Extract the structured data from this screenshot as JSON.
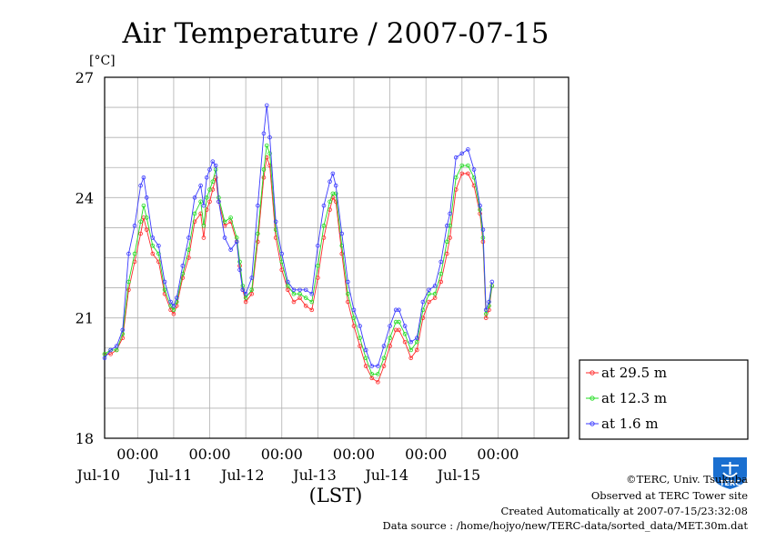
{
  "chart_data": {
    "type": "line",
    "title": "Air Temperature / 2007-07-15",
    "ylabel": "[°C]",
    "xlabel": "(LST)",
    "ylim": [
      18,
      27
    ],
    "yticks": [
      18,
      21,
      24,
      27
    ],
    "x_start": "2007-07-09 13:00",
    "x_end": "2007-07-15 23:30",
    "xticks": [
      {
        "time": "2007-07-10 00:00",
        "label": "00:00",
        "date": "Jul-10"
      },
      {
        "time": "2007-07-11 00:00",
        "label": "00:00",
        "date": "Jul-11"
      },
      {
        "time": "2007-07-12 00:00",
        "label": "00:00",
        "date": "Jul-12"
      },
      {
        "time": "2007-07-13 00:00",
        "label": "00:00",
        "date": "Jul-13"
      },
      {
        "time": "2007-07-14 00:00",
        "label": "00:00",
        "date": "Jul-14"
      },
      {
        "time": "2007-07-15 00:00",
        "label": "00:00",
        "date": "Jul-15"
      }
    ],
    "grid": true,
    "legend_position": "bottom-right, outside plot",
    "series": [
      {
        "name": "at 29.5 m",
        "color": "#ff2a2a",
        "points": [
          [
            "2007-07-09 13:00",
            20.1
          ],
          [
            "2007-07-09 15:00",
            20.1
          ],
          [
            "2007-07-09 17:00",
            20.2
          ],
          [
            "2007-07-09 19:00",
            20.5
          ],
          [
            "2007-07-09 21:00",
            21.7
          ],
          [
            "2007-07-09 23:00",
            22.4
          ],
          [
            "2007-07-10 01:00",
            23.1
          ],
          [
            "2007-07-10 02:00",
            23.5
          ],
          [
            "2007-07-10 03:00",
            23.2
          ],
          [
            "2007-07-10 05:00",
            22.6
          ],
          [
            "2007-07-10 07:00",
            22.4
          ],
          [
            "2007-07-10 09:00",
            21.6
          ],
          [
            "2007-07-10 11:00",
            21.2
          ],
          [
            "2007-07-10 12:00",
            21.1
          ],
          [
            "2007-07-10 13:00",
            21.3
          ],
          [
            "2007-07-10 15:00",
            22.0
          ],
          [
            "2007-07-10 17:00",
            22.5
          ],
          [
            "2007-07-10 19:00",
            23.4
          ],
          [
            "2007-07-10 21:00",
            23.6
          ],
          [
            "2007-07-10 22:00",
            23.0
          ],
          [
            "2007-07-10 23:00",
            23.7
          ],
          [
            "2007-07-11 00:00",
            23.9
          ],
          [
            "2007-07-11 01:00",
            24.2
          ],
          [
            "2007-07-11 02:00",
            24.5
          ],
          [
            "2007-07-11 03:00",
            23.9
          ],
          [
            "2007-07-11 05:00",
            23.3
          ],
          [
            "2007-07-11 07:00",
            23.4
          ],
          [
            "2007-07-11 09:00",
            22.9
          ],
          [
            "2007-07-11 10:00",
            22.3
          ],
          [
            "2007-07-11 11:00",
            21.7
          ],
          [
            "2007-07-11 12:00",
            21.4
          ],
          [
            "2007-07-11 14:00",
            21.6
          ],
          [
            "2007-07-11 16:00",
            22.9
          ],
          [
            "2007-07-11 18:00",
            24.5
          ],
          [
            "2007-07-11 19:00",
            25.0
          ],
          [
            "2007-07-11 20:00",
            24.8
          ],
          [
            "2007-07-11 22:00",
            23.0
          ],
          [
            "2007-07-12 00:00",
            22.2
          ],
          [
            "2007-07-12 02:00",
            21.7
          ],
          [
            "2007-07-12 04:00",
            21.4
          ],
          [
            "2007-07-12 06:00",
            21.5
          ],
          [
            "2007-07-12 08:00",
            21.3
          ],
          [
            "2007-07-12 10:00",
            21.2
          ],
          [
            "2007-07-12 12:00",
            22.0
          ],
          [
            "2007-07-12 14:00",
            23.0
          ],
          [
            "2007-07-12 16:00",
            23.7
          ],
          [
            "2007-07-12 17:00",
            24.0
          ],
          [
            "2007-07-12 18:00",
            23.9
          ],
          [
            "2007-07-12 20:00",
            22.6
          ],
          [
            "2007-07-12 22:00",
            21.4
          ],
          [
            "2007-07-13 00:00",
            20.8
          ],
          [
            "2007-07-13 02:00",
            20.3
          ],
          [
            "2007-07-13 04:00",
            19.8
          ],
          [
            "2007-07-13 06:00",
            19.5
          ],
          [
            "2007-07-13 08:00",
            19.4
          ],
          [
            "2007-07-13 10:00",
            19.8
          ],
          [
            "2007-07-13 12:00",
            20.3
          ],
          [
            "2007-07-13 14:00",
            20.7
          ],
          [
            "2007-07-13 15:00",
            20.7
          ],
          [
            "2007-07-13 17:00",
            20.4
          ],
          [
            "2007-07-13 19:00",
            20.0
          ],
          [
            "2007-07-13 21:00",
            20.2
          ],
          [
            "2007-07-13 23:00",
            21.0
          ],
          [
            "2007-07-14 01:00",
            21.4
          ],
          [
            "2007-07-14 03:00",
            21.5
          ],
          [
            "2007-07-14 05:00",
            21.9
          ],
          [
            "2007-07-14 07:00",
            22.6
          ],
          [
            "2007-07-14 08:00",
            23.0
          ],
          [
            "2007-07-14 10:00",
            24.2
          ],
          [
            "2007-07-14 12:00",
            24.6
          ],
          [
            "2007-07-14 14:00",
            24.6
          ],
          [
            "2007-07-14 16:00",
            24.3
          ],
          [
            "2007-07-14 18:00",
            23.6
          ],
          [
            "2007-07-14 19:00",
            22.9
          ],
          [
            "2007-07-14 20:00",
            21.0
          ],
          [
            "2007-07-14 21:00",
            21.2
          ],
          [
            "2007-07-14 22:00",
            21.8
          ]
        ]
      },
      {
        "name": "at 12.3 m",
        "color": "#22dd22",
        "points": [
          [
            "2007-07-09 13:00",
            20.1
          ],
          [
            "2007-07-09 15:00",
            20.2
          ],
          [
            "2007-07-09 17:00",
            20.2
          ],
          [
            "2007-07-09 19:00",
            20.6
          ],
          [
            "2007-07-09 21:00",
            21.9
          ],
          [
            "2007-07-09 23:00",
            22.6
          ],
          [
            "2007-07-10 01:00",
            23.4
          ],
          [
            "2007-07-10 02:00",
            23.8
          ],
          [
            "2007-07-10 03:00",
            23.5
          ],
          [
            "2007-07-10 05:00",
            22.8
          ],
          [
            "2007-07-10 07:00",
            22.6
          ],
          [
            "2007-07-10 09:00",
            21.7
          ],
          [
            "2007-07-10 11:00",
            21.3
          ],
          [
            "2007-07-10 12:00",
            21.2
          ],
          [
            "2007-07-10 13:00",
            21.4
          ],
          [
            "2007-07-10 15:00",
            22.1
          ],
          [
            "2007-07-10 17:00",
            22.7
          ],
          [
            "2007-07-10 19:00",
            23.6
          ],
          [
            "2007-07-10 21:00",
            23.9
          ],
          [
            "2007-07-10 22:00",
            23.3
          ],
          [
            "2007-07-10 23:00",
            24.0
          ],
          [
            "2007-07-11 00:00",
            24.2
          ],
          [
            "2007-07-11 01:00",
            24.4
          ],
          [
            "2007-07-11 02:00",
            24.7
          ],
          [
            "2007-07-11 03:00",
            24.0
          ],
          [
            "2007-07-11 05:00",
            23.4
          ],
          [
            "2007-07-11 07:00",
            23.5
          ],
          [
            "2007-07-11 09:00",
            23.0
          ],
          [
            "2007-07-11 10:00",
            22.4
          ],
          [
            "2007-07-11 11:00",
            21.8
          ],
          [
            "2007-07-11 12:00",
            21.5
          ],
          [
            "2007-07-11 14:00",
            21.7
          ],
          [
            "2007-07-11 16:00",
            23.1
          ],
          [
            "2007-07-11 18:00",
            24.7
          ],
          [
            "2007-07-11 19:00",
            25.3
          ],
          [
            "2007-07-11 20:00",
            25.1
          ],
          [
            "2007-07-11 22:00",
            23.2
          ],
          [
            "2007-07-12 00:00",
            22.4
          ],
          [
            "2007-07-12 02:00",
            21.8
          ],
          [
            "2007-07-12 04:00",
            21.6
          ],
          [
            "2007-07-12 06:00",
            21.6
          ],
          [
            "2007-07-12 08:00",
            21.5
          ],
          [
            "2007-07-12 10:00",
            21.4
          ],
          [
            "2007-07-12 12:00",
            22.3
          ],
          [
            "2007-07-12 14:00",
            23.3
          ],
          [
            "2007-07-12 16:00",
            23.9
          ],
          [
            "2007-07-12 17:00",
            24.1
          ],
          [
            "2007-07-12 18:00",
            24.1
          ],
          [
            "2007-07-12 20:00",
            22.8
          ],
          [
            "2007-07-12 22:00",
            21.6
          ],
          [
            "2007-07-13 00:00",
            21.0
          ],
          [
            "2007-07-13 02:00",
            20.5
          ],
          [
            "2007-07-13 04:00",
            20.0
          ],
          [
            "2007-07-13 06:00",
            19.6
          ],
          [
            "2007-07-13 08:00",
            19.6
          ],
          [
            "2007-07-13 10:00",
            20.0
          ],
          [
            "2007-07-13 12:00",
            20.5
          ],
          [
            "2007-07-13 14:00",
            20.9
          ],
          [
            "2007-07-13 15:00",
            20.9
          ],
          [
            "2007-07-13 17:00",
            20.6
          ],
          [
            "2007-07-13 19:00",
            20.2
          ],
          [
            "2007-07-13 21:00",
            20.4
          ],
          [
            "2007-07-13 23:00",
            21.2
          ],
          [
            "2007-07-14 01:00",
            21.6
          ],
          [
            "2007-07-14 03:00",
            21.6
          ],
          [
            "2007-07-14 05:00",
            22.1
          ],
          [
            "2007-07-14 07:00",
            22.9
          ],
          [
            "2007-07-14 08:00",
            23.3
          ],
          [
            "2007-07-14 10:00",
            24.5
          ],
          [
            "2007-07-14 12:00",
            24.8
          ],
          [
            "2007-07-14 14:00",
            24.8
          ],
          [
            "2007-07-14 16:00",
            24.5
          ],
          [
            "2007-07-14 18:00",
            23.7
          ],
          [
            "2007-07-14 19:00",
            23.0
          ],
          [
            "2007-07-14 20:00",
            21.1
          ],
          [
            "2007-07-14 21:00",
            21.3
          ],
          [
            "2007-07-14 22:00",
            21.8
          ]
        ]
      },
      {
        "name": "at 1.6 m",
        "color": "#3a3aff",
        "points": [
          [
            "2007-07-09 13:00",
            20.0
          ],
          [
            "2007-07-09 15:00",
            20.2
          ],
          [
            "2007-07-09 17:00",
            20.3
          ],
          [
            "2007-07-09 19:00",
            20.7
          ],
          [
            "2007-07-09 21:00",
            22.6
          ],
          [
            "2007-07-09 23:00",
            23.3
          ],
          [
            "2007-07-10 01:00",
            24.3
          ],
          [
            "2007-07-10 02:00",
            24.5
          ],
          [
            "2007-07-10 03:00",
            24.0
          ],
          [
            "2007-07-10 05:00",
            23.0
          ],
          [
            "2007-07-10 07:00",
            22.8
          ],
          [
            "2007-07-10 09:00",
            21.9
          ],
          [
            "2007-07-10 11:00",
            21.4
          ],
          [
            "2007-07-10 12:00",
            21.3
          ],
          [
            "2007-07-10 13:00",
            21.5
          ],
          [
            "2007-07-10 15:00",
            22.3
          ],
          [
            "2007-07-10 17:00",
            23.0
          ],
          [
            "2007-07-10 19:00",
            24.0
          ],
          [
            "2007-07-10 21:00",
            24.3
          ],
          [
            "2007-07-10 22:00",
            23.8
          ],
          [
            "2007-07-10 23:00",
            24.5
          ],
          [
            "2007-07-11 00:00",
            24.7
          ],
          [
            "2007-07-11 01:00",
            24.9
          ],
          [
            "2007-07-11 02:00",
            24.8
          ],
          [
            "2007-07-11 03:00",
            23.9
          ],
          [
            "2007-07-11 05:00",
            23.0
          ],
          [
            "2007-07-11 07:00",
            22.7
          ],
          [
            "2007-07-11 09:00",
            22.9
          ],
          [
            "2007-07-11 10:00",
            22.2
          ],
          [
            "2007-07-11 11:00",
            21.7
          ],
          [
            "2007-07-11 12:00",
            21.6
          ],
          [
            "2007-07-11 14:00",
            22.0
          ],
          [
            "2007-07-11 16:00",
            23.8
          ],
          [
            "2007-07-11 18:00",
            25.6
          ],
          [
            "2007-07-11 19:00",
            26.3
          ],
          [
            "2007-07-11 20:00",
            25.5
          ],
          [
            "2007-07-11 22:00",
            23.4
          ],
          [
            "2007-07-12 00:00",
            22.6
          ],
          [
            "2007-07-12 02:00",
            21.9
          ],
          [
            "2007-07-12 04:00",
            21.7
          ],
          [
            "2007-07-12 06:00",
            21.7
          ],
          [
            "2007-07-12 08:00",
            21.7
          ],
          [
            "2007-07-12 10:00",
            21.6
          ],
          [
            "2007-07-12 12:00",
            22.8
          ],
          [
            "2007-07-12 14:00",
            23.8
          ],
          [
            "2007-07-12 16:00",
            24.4
          ],
          [
            "2007-07-12 17:00",
            24.6
          ],
          [
            "2007-07-12 18:00",
            24.3
          ],
          [
            "2007-07-12 20:00",
            23.1
          ],
          [
            "2007-07-12 22:00",
            21.9
          ],
          [
            "2007-07-13 00:00",
            21.2
          ],
          [
            "2007-07-13 02:00",
            20.8
          ],
          [
            "2007-07-13 04:00",
            20.2
          ],
          [
            "2007-07-13 06:00",
            19.8
          ],
          [
            "2007-07-13 08:00",
            19.8
          ],
          [
            "2007-07-13 10:00",
            20.3
          ],
          [
            "2007-07-13 12:00",
            20.8
          ],
          [
            "2007-07-13 14:00",
            21.2
          ],
          [
            "2007-07-13 15:00",
            21.2
          ],
          [
            "2007-07-13 17:00",
            20.8
          ],
          [
            "2007-07-13 19:00",
            20.4
          ],
          [
            "2007-07-13 21:00",
            20.5
          ],
          [
            "2007-07-13 23:00",
            21.4
          ],
          [
            "2007-07-14 01:00",
            21.7
          ],
          [
            "2007-07-14 03:00",
            21.8
          ],
          [
            "2007-07-14 05:00",
            22.4
          ],
          [
            "2007-07-14 07:00",
            23.3
          ],
          [
            "2007-07-14 08:00",
            23.6
          ],
          [
            "2007-07-14 10:00",
            25.0
          ],
          [
            "2007-07-14 12:00",
            25.1
          ],
          [
            "2007-07-14 14:00",
            25.2
          ],
          [
            "2007-07-14 16:00",
            24.7
          ],
          [
            "2007-07-14 18:00",
            23.8
          ],
          [
            "2007-07-14 19:00",
            23.2
          ],
          [
            "2007-07-14 20:00",
            21.2
          ],
          [
            "2007-07-14 21:00",
            21.4
          ],
          [
            "2007-07-14 22:00",
            21.9
          ]
        ]
      }
    ]
  },
  "credits": {
    "copyright": "©TERC, Univ. Tsukuba",
    "observed": "Observed at TERC Tower site",
    "created": "Created Automatically at 2007-07-15/23:32:08",
    "source": "Data source : /home/hojyo/new/TERC-data/sorted_data/MET.30m.dat"
  },
  "logo": {
    "text": "TERC",
    "color": "#1a6fd0"
  }
}
